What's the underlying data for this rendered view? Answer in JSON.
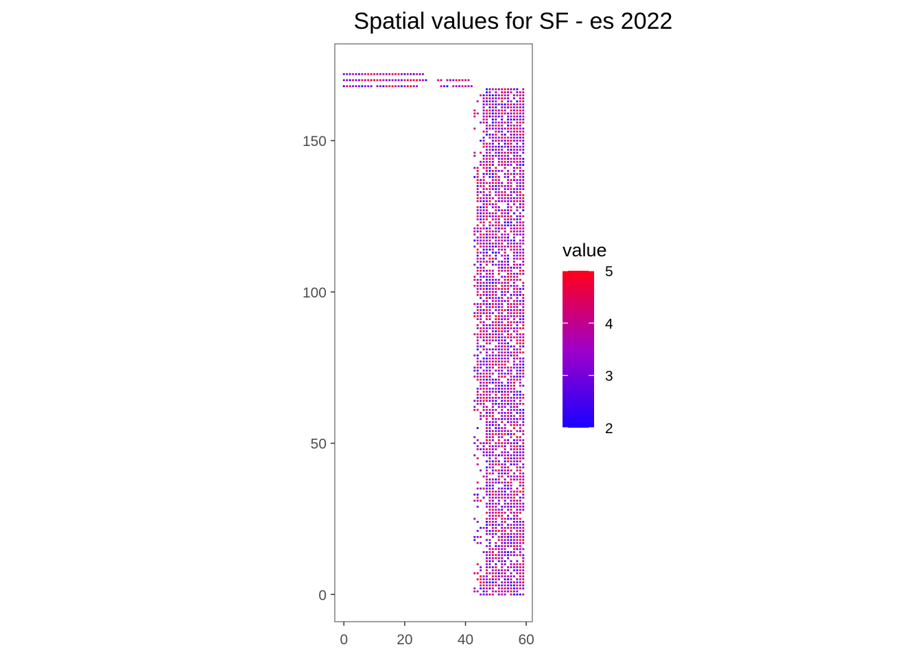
{
  "chart_data": {
    "type": "heatmap",
    "title": "Spatial values for SF - es 2022",
    "xlabel": "",
    "ylabel": "",
    "xlim": [
      -3,
      62
    ],
    "ylim": [
      -9,
      182
    ],
    "x_ticks": [
      0,
      20,
      40,
      60
    ],
    "y_ticks": [
      0,
      50,
      100,
      150
    ],
    "x_tick_labels": [
      "0",
      "20",
      "40",
      "60"
    ],
    "y_tick_labels": [
      "0",
      "50",
      "100",
      "150"
    ],
    "grid": false,
    "legend": {
      "title": "value",
      "placement": "right",
      "min": 2,
      "max": 5,
      "ticks": [
        2,
        3,
        4,
        5
      ],
      "tick_labels": [
        "2",
        "3",
        "4",
        "5"
      ],
      "low_color": "#1a00ff",
      "mid_color": "#a000c8",
      "high_color": "#ff0018"
    },
    "regions": [
      {
        "name": "top-strip",
        "x_range": [
          0,
          27
        ],
        "y_range": [
          168,
          172
        ],
        "note_values": "mixed 2-4"
      },
      {
        "name": "top-strip-extension",
        "x_range": [
          31,
          42
        ],
        "y_range": [
          168,
          170
        ]
      },
      {
        "name": "main-column",
        "x_range": [
          43,
          59
        ],
        "y_range": [
          0,
          167
        ]
      }
    ]
  }
}
